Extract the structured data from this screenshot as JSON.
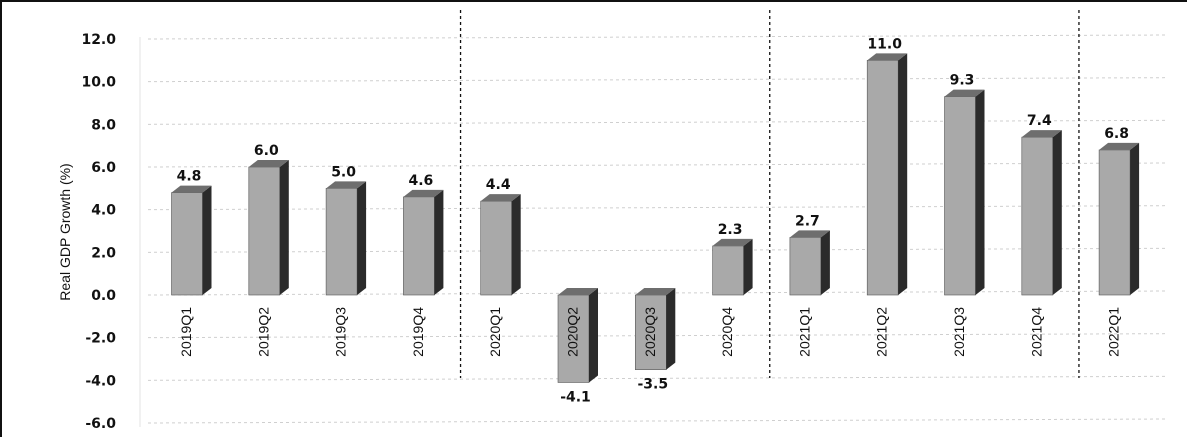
{
  "chart_data": {
    "type": "bar",
    "title": "",
    "xlabel": "",
    "ylabel": "Real GDP Growth (%)",
    "ylim": [
      -6,
      12
    ],
    "yticks": [
      "12.0",
      "10.0",
      "8.0",
      "6.0",
      "4.0",
      "2.0",
      "0.0",
      "-2.0",
      "-4.0",
      "-6.0"
    ],
    "grid": true,
    "style": "3d-bar",
    "bar_color": "#a9a9a9",
    "bar_side_color": "#2b2b2b",
    "bar_top_color": "#6e6e6e",
    "categories": [
      "2019Q1",
      "2019Q2",
      "2019Q3",
      "2019Q4",
      "2020Q1",
      "2020Q2",
      "2020Q3",
      "2020Q4",
      "2021Q1",
      "2021Q2",
      "2021Q3",
      "2021Q4",
      "2022Q1"
    ],
    "values": [
      4.8,
      6.0,
      5.0,
      4.6,
      4.4,
      -4.1,
      -3.5,
      2.3,
      2.7,
      11.0,
      9.3,
      7.4,
      6.8
    ],
    "value_labels": [
      "4.8",
      "6.0",
      "5.0",
      "4.6",
      "4.4",
      "-4.1",
      "-3.5",
      "2.3",
      "2.7",
      "11.0",
      "9.3",
      "7.4",
      "6.8"
    ],
    "group_dividers_after": [
      "2019Q4",
      "2020Q4",
      "2021Q4"
    ]
  }
}
